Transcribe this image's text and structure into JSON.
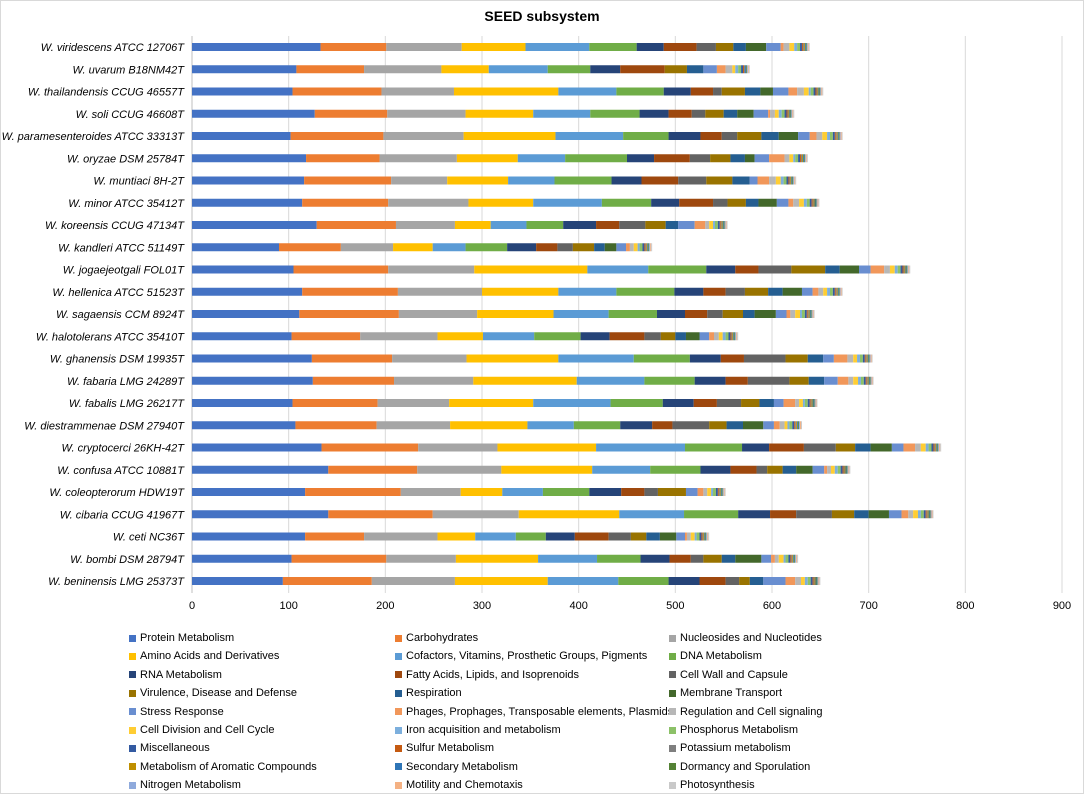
{
  "chart_data": {
    "type": "bar",
    "orientation": "horizontal",
    "stacked": true,
    "title": "SEED subsystem",
    "xlim": [
      0,
      900
    ],
    "xticks": [
      0,
      100,
      200,
      300,
      400,
      500,
      600,
      700,
      800,
      900
    ],
    "grid": true,
    "legend_position": "bottom",
    "categories": [
      "W. viridescens ATCC 12706T",
      "W. uvarum B18NM42T",
      "W. thailandensis CCUG 46557T",
      "W. soli CCUG 46608T",
      "W. paramesenteroides ATCC 33313T",
      "W. oryzae DSM 25784T",
      "W. muntiaci 8H-2T",
      "W. minor ATCC 35412T",
      "W. koreensis CCUG 47134T",
      "W. kandleri ATCC 51149T",
      "W. jogaejeotgali FOL01T",
      "W. hellenica ATCC 51523T",
      "W. sagaensis CCM 8924T",
      "W. halotolerans ATCC 35410T",
      "W. ghanensis DSM 19935T",
      "W. fabaria LMG 24289T",
      "W. fabalis LMG 26217T",
      "W. diestrammenae DSM 27940T",
      "W. cryptocerci 26KH-42T",
      "W. confusa ATCC 10881T",
      "W. coleopterorum HDW19T",
      "W. cibaria CCUG 41967T",
      "W. ceti NC36T",
      "W. bombi DSM 28794T",
      "W. beninensis LMG 25373T"
    ],
    "series": [
      {
        "name": "Protein Metabolism",
        "color": "#4472C4",
        "values": [
          133,
          108,
          104,
          127,
          102,
          118,
          116,
          114,
          129,
          90,
          105,
          114,
          111,
          103,
          124,
          125,
          104,
          107,
          134,
          141,
          117,
          141,
          117,
          103,
          94
        ]
      },
      {
        "name": "Carbohydrates",
        "color": "#ED7D31",
        "values": [
          68,
          70,
          92,
          75,
          96,
          76,
          90,
          89,
          82,
          64,
          98,
          99,
          103,
          71,
          83,
          84,
          88,
          84,
          100,
          92,
          99,
          108,
          61,
          98,
          92
        ]
      },
      {
        "name": "Nucleosides and Nucleotides",
        "color": "#A5A5A5",
        "values": [
          78,
          80,
          75,
          81,
          83,
          80,
          58,
          83,
          61,
          54,
          89,
          87,
          81,
          80,
          77,
          82,
          74,
          76,
          82,
          87,
          62,
          89,
          76,
          72,
          86
        ]
      },
      {
        "name": "Amino Acids and Derivatives",
        "color": "#FFC000",
        "values": [
          66,
          49,
          108,
          70,
          95,
          63,
          63,
          67,
          37,
          41,
          117,
          79,
          79,
          47,
          95,
          107,
          87,
          80,
          102,
          94,
          43,
          104,
          39,
          85,
          96
        ]
      },
      {
        "name": "Cofactors, Vitamins, Prosthetic Groups, Pigments",
        "color": "#5B9BD5",
        "values": [
          66,
          61,
          60,
          59,
          70,
          49,
          48,
          71,
          37,
          34,
          63,
          60,
          57,
          53,
          78,
          70,
          80,
          48,
          92,
          60,
          42,
          67,
          42,
          61,
          73
        ]
      },
      {
        "name": "DNA Metabolism",
        "color": "#70AD47",
        "values": [
          49,
          44,
          49,
          51,
          47,
          64,
          59,
          51,
          38,
          43,
          60,
          60,
          50,
          48,
          58,
          52,
          54,
          48,
          59,
          52,
          48,
          56,
          31,
          45,
          52
        ]
      },
      {
        "name": "RNA Metabolism",
        "color": "#264478",
        "values": [
          28,
          31,
          28,
          30,
          33,
          28,
          31,
          29,
          34,
          30,
          30,
          30,
          29,
          30,
          32,
          32,
          32,
          33,
          28,
          31,
          33,
          33,
          30,
          30,
          32
        ]
      },
      {
        "name": "Fatty Acids, Lipids, and Isoprenoids",
        "color": "#9E480E",
        "values": [
          34,
          46,
          23,
          24,
          22,
          37,
          38,
          35,
          24,
          22,
          24,
          23,
          23,
          36,
          24,
          23,
          24,
          21,
          36,
          27,
          24,
          27,
          35,
          22,
          27
        ]
      },
      {
        "name": "Cell Wall and Capsule",
        "color": "#636363",
        "values": [
          20,
          0,
          9,
          14,
          16,
          21,
          29,
          15,
          27,
          16,
          34,
          20,
          16,
          17,
          43,
          43,
          25,
          38,
          33,
          11,
          14,
          37,
          23,
          13,
          14
        ]
      },
      {
        "name": "Virulence, Disease and Defense",
        "color": "#997300",
        "values": [
          18,
          23,
          24,
          19,
          25,
          21,
          27,
          19,
          21,
          22,
          35,
          24,
          21,
          15,
          23,
          20,
          19,
          18,
          20,
          16,
          29,
          23,
          16,
          19,
          11
        ]
      },
      {
        "name": "Respiration",
        "color": "#255E91",
        "values": [
          13,
          17,
          16,
          14,
          18,
          15,
          18,
          13,
          13,
          11,
          15,
          15,
          12,
          11,
          16,
          16,
          15,
          17,
          16,
          14,
          0,
          15,
          14,
          14,
          14
        ]
      },
      {
        "name": "Membrane Transport",
        "color": "#43682B",
        "values": [
          21,
          0,
          13,
          17,
          20,
          10,
          0,
          19,
          0,
          12,
          20,
          20,
          22,
          14,
          0,
          0,
          0,
          21,
          22,
          17,
          0,
          21,
          17,
          27,
          0
        ]
      },
      {
        "name": "Stress Response",
        "color": "#698ED0",
        "values": [
          15,
          14,
          16,
          15,
          12,
          15,
          8,
          12,
          17,
          10,
          12,
          11,
          11,
          10,
          11,
          14,
          10,
          11,
          12,
          12,
          12,
          13,
          9,
          10,
          23
        ]
      },
      {
        "name": "Phages, Prophages, Transposable elements, Plasmids",
        "color": "#F1975A",
        "values": [
          3,
          9,
          9,
          2,
          7,
          16,
          12,
          5,
          11,
          4,
          14,
          6,
          4,
          5,
          14,
          11,
          12,
          6,
          12,
          3,
          6,
          7,
          2,
          4,
          10
        ]
      },
      {
        "name": "Regulation and Cell signaling",
        "color": "#B7B7B7",
        "values": [
          6,
          7,
          7,
          5,
          6,
          5,
          7,
          6,
          4,
          4,
          6,
          5,
          5,
          5,
          6,
          5,
          4,
          5,
          6,
          4,
          4,
          5,
          4,
          4,
          6
        ]
      },
      {
        "name": "Cell Division and Cell Cycle",
        "color": "#FFCD33",
        "values": [
          5,
          3,
          5,
          4,
          5,
          4,
          5,
          5,
          4,
          4,
          5,
          4,
          5,
          4,
          4,
          5,
          4,
          3,
          5,
          4,
          4,
          5,
          4,
          5,
          4
        ]
      },
      {
        "name": "Iron acquisition and metabolism",
        "color": "#7CAFDD",
        "values": [
          3,
          3,
          2,
          3,
          3,
          2,
          3,
          3,
          2,
          2,
          3,
          3,
          2,
          3,
          3,
          3,
          2,
          2,
          3,
          3,
          2,
          3,
          2,
          2,
          3
        ]
      },
      {
        "name": "Phosphorus Metabolism",
        "color": "#8CC168",
        "values": [
          3,
          3,
          3,
          3,
          3,
          3,
          3,
          3,
          3,
          3,
          3,
          3,
          3,
          3,
          3,
          3,
          3,
          3,
          3,
          3,
          3,
          3,
          3,
          3,
          3
        ]
      },
      {
        "name": "Miscellaneous",
        "color": "#335AA1",
        "values": [
          2,
          2,
          2,
          2,
          2,
          2,
          2,
          2,
          2,
          2,
          2,
          2,
          2,
          2,
          2,
          2,
          2,
          2,
          2,
          2,
          2,
          2,
          2,
          2,
          2
        ]
      },
      {
        "name": "Sulfur Metabolism",
        "color": "#C55A11",
        "values": [
          1,
          1,
          1,
          1,
          1,
          1,
          1,
          1,
          1,
          1,
          1,
          1,
          1,
          1,
          1,
          1,
          1,
          1,
          1,
          1,
          1,
          1,
          1,
          1,
          1
        ]
      },
      {
        "name": "Potassium metabolism",
        "color": "#7F7F7F",
        "values": [
          1,
          1,
          1,
          1,
          1,
          1,
          1,
          1,
          1,
          1,
          1,
          1,
          1,
          1,
          1,
          1,
          1,
          1,
          1,
          1,
          1,
          1,
          1,
          1,
          1
        ]
      },
      {
        "name": "Metabolism of Aromatic Compounds",
        "color": "#BF8F00",
        "values": [
          1,
          0,
          1,
          1,
          1,
          1,
          1,
          1,
          1,
          1,
          1,
          1,
          1,
          1,
          1,
          1,
          1,
          1,
          1,
          1,
          1,
          1,
          1,
          1,
          1
        ]
      },
      {
        "name": "Secondary Metabolism",
        "color": "#2E75B6",
        "values": [
          1,
          1,
          1,
          1,
          1,
          1,
          1,
          1,
          1,
          1,
          1,
          1,
          1,
          1,
          1,
          1,
          1,
          1,
          1,
          1,
          1,
          1,
          1,
          1,
          1
        ]
      },
      {
        "name": "Dormancy and Sporulation",
        "color": "#548235",
        "values": [
          1,
          1,
          1,
          1,
          1,
          1,
          1,
          1,
          1,
          1,
          1,
          1,
          1,
          1,
          1,
          1,
          1,
          1,
          1,
          1,
          1,
          1,
          1,
          1,
          1
        ]
      },
      {
        "name": "Nitrogen Metabolism",
        "color": "#8FAADC",
        "values": [
          1,
          1,
          1,
          1,
          1,
          1,
          1,
          1,
          1,
          1,
          1,
          1,
          1,
          1,
          1,
          1,
          1,
          1,
          1,
          1,
          1,
          1,
          1,
          1,
          1
        ]
      },
      {
        "name": "Motility and Chemotaxis",
        "color": "#F4B183",
        "values": [
          1,
          1,
          1,
          1,
          1,
          1,
          1,
          1,
          1,
          1,
          1,
          1,
          1,
          1,
          1,
          1,
          1,
          1,
          1,
          1,
          1,
          1,
          1,
          1,
          1
        ]
      },
      {
        "name": "Photosynthesis",
        "color": "#C9C9C9",
        "values": [
          1,
          1,
          1,
          1,
          1,
          1,
          1,
          1,
          1,
          1,
          1,
          1,
          1,
          1,
          1,
          1,
          1,
          1,
          1,
          1,
          1,
          1,
          1,
          1,
          1
        ]
      }
    ]
  }
}
